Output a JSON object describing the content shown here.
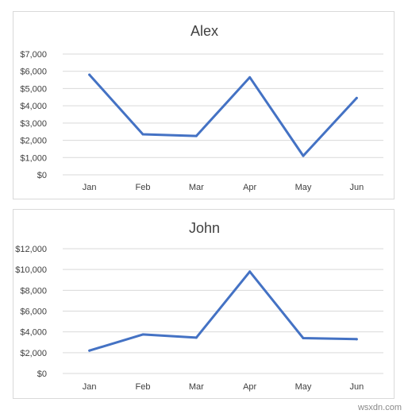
{
  "watermark": "wsxdn.com",
  "colors": {
    "series": "#4472c4",
    "grid": "#d9d9d9",
    "text": "#404040"
  },
  "chart_data": [
    {
      "type": "line",
      "title": "Alex",
      "categories": [
        "Jan",
        "Feb",
        "Mar",
        "Apr",
        "May",
        "Jun"
      ],
      "values": [
        5800,
        2350,
        2250,
        5650,
        1100,
        4450
      ],
      "y_ticks": [
        0,
        1000,
        2000,
        3000,
        4000,
        5000,
        6000,
        7000
      ],
      "y_tick_labels": [
        "$0",
        "$1,000",
        "$2,000",
        "$3,000",
        "$4,000",
        "$5,000",
        "$6,000",
        "$7,000"
      ],
      "ylim": [
        0,
        7000
      ],
      "grid": true,
      "legend": "none"
    },
    {
      "type": "line",
      "title": "John",
      "categories": [
        "Jan",
        "Feb",
        "Mar",
        "Apr",
        "May",
        "Jun"
      ],
      "values": [
        2200,
        3750,
        3450,
        9800,
        3400,
        3300
      ],
      "y_ticks": [
        0,
        2000,
        4000,
        6000,
        8000,
        10000,
        12000
      ],
      "y_tick_labels": [
        "$0",
        "$2,000",
        "$4,000",
        "$6,000",
        "$8,000",
        "$10,000",
        "$12,000"
      ],
      "ylim": [
        0,
        12000
      ],
      "grid": true,
      "legend": "none"
    }
  ]
}
